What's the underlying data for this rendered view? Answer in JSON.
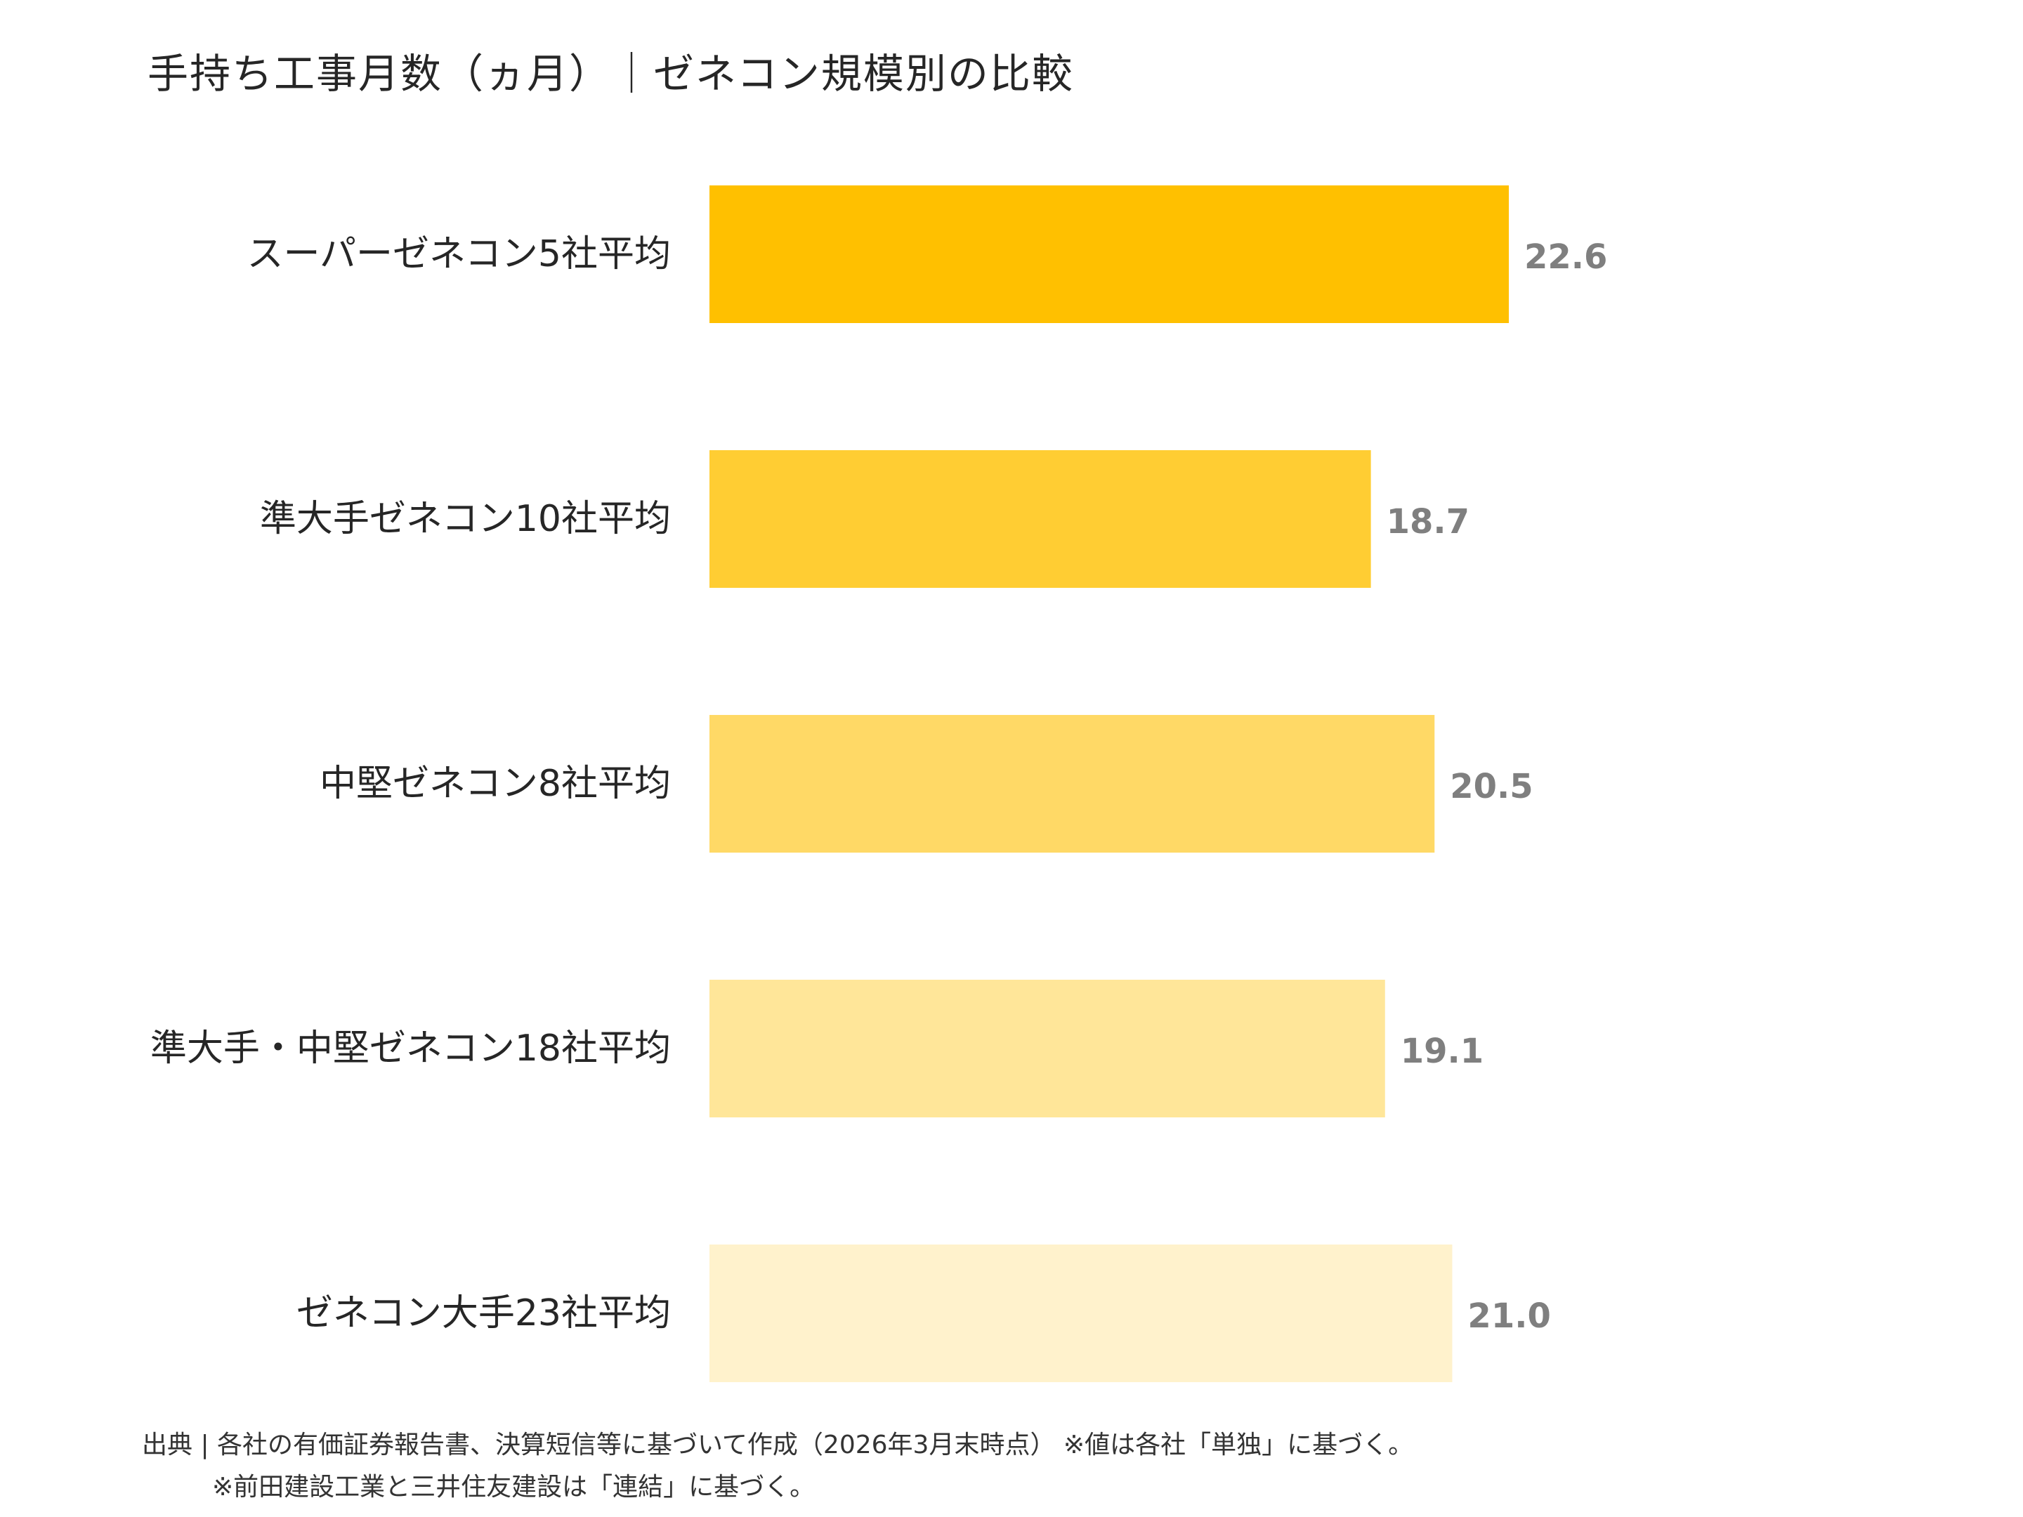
{
  "chart_data": {
    "type": "bar",
    "orientation": "horizontal",
    "title": "手持ち工事月数（ヵ月）｜ゼネコン規模別の比較",
    "categories": [
      "スーパーゼネコン5社平均",
      "準大手ゼネコン10社平均",
      "中堅ゼネコン8社平均",
      "準大手・中堅ゼネコン18社平均",
      "ゼネコン大手23社平均"
    ],
    "values": [
      22.6,
      18.7,
      20.5,
      19.1,
      21.0
    ],
    "value_labels": [
      "22.6",
      "18.7",
      "20.5",
      "19.1",
      "21.0"
    ],
    "bar_colors": [
      "#FFC000",
      "#FFCD33",
      "#FFD966",
      "#FFE699",
      "#FFF2CC"
    ],
    "value_label_color": "#7F7F7F",
    "xlim": [
      0,
      22.6
    ],
    "grid": false,
    "legend": "none"
  },
  "footnotes": {
    "line1": "出典 | 各社の有価証券報告書、決算短信等に基づいて作成（2026年3月末時点） ※値は各社「単独」に基づく。",
    "line2": "※前田建設工業と三井住友建設は「連結」に基づく。"
  }
}
